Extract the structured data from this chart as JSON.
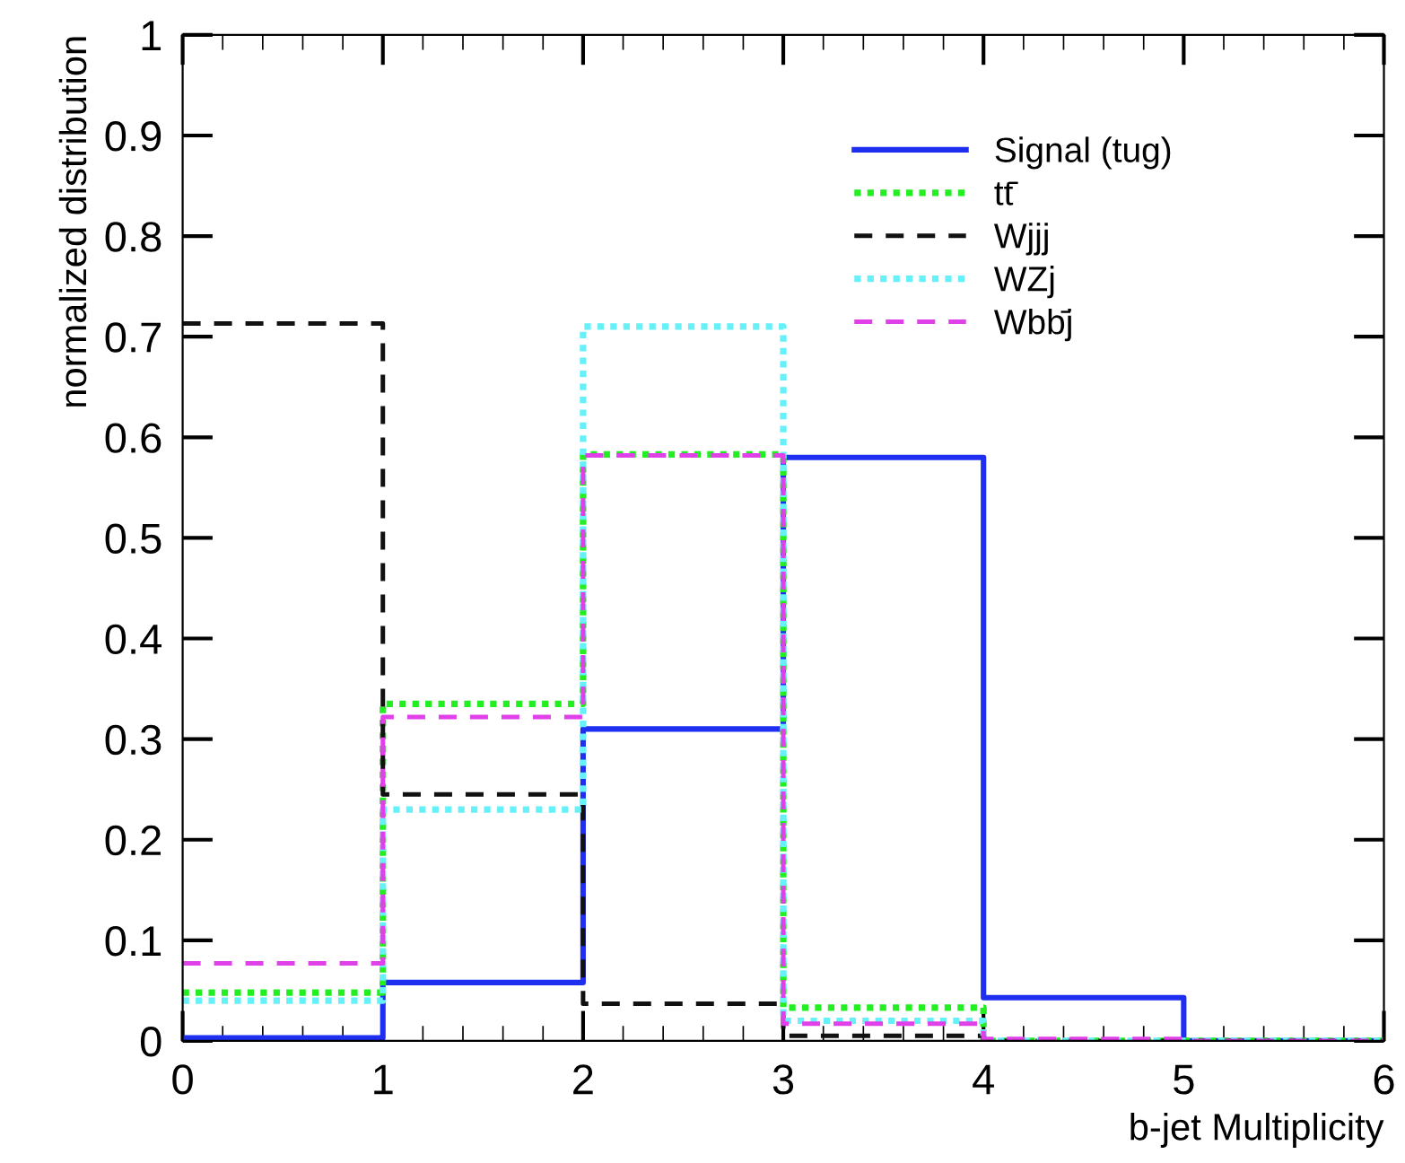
{
  "chart_data": {
    "type": "step",
    "xlabel": "b-jet Multiplicity",
    "ylabel": "normalized distribution",
    "x": [
      0,
      1,
      2,
      3,
      4,
      5,
      6
    ],
    "series": [
      {
        "name": "Signal (tug)",
        "color": "#1f2ff0",
        "line_style": "solid",
        "values": [
          0.003,
          0.058,
          0.31,
          0.58,
          0.043,
          0.0,
          0.0
        ]
      },
      {
        "name": "tt̄",
        "color": "#22ee22",
        "line_style": "dotted",
        "values": [
          0.048,
          0.335,
          0.583,
          0.033,
          0.0,
          0.0,
          0.0
        ]
      },
      {
        "name": "Wjjj",
        "color": "#111111",
        "line_style": "dashed",
        "values": [
          0.713,
          0.245,
          0.037,
          0.005,
          0.0,
          0.0,
          0.0
        ]
      },
      {
        "name": "WZj",
        "color": "#66f0f8",
        "line_style": "dotted",
        "values": [
          0.04,
          0.23,
          0.71,
          0.02,
          0.0,
          0.0,
          0.0
        ]
      },
      {
        "name": "Wbb̄j",
        "color": "#e040e8",
        "line_style": "dashed",
        "values": [
          0.077,
          0.322,
          0.582,
          0.017,
          0.002,
          0.0,
          0.0
        ]
      }
    ],
    "xlim": [
      0,
      6
    ],
    "xticks": [
      0,
      1,
      2,
      3,
      4,
      5,
      6
    ],
    "ylim": [
      0,
      1
    ],
    "yticks": [
      0,
      0.1,
      0.2,
      0.3,
      0.4,
      0.5,
      0.6,
      0.7,
      0.8,
      0.9,
      1
    ],
    "legend": "top right",
    "grid": false
  }
}
